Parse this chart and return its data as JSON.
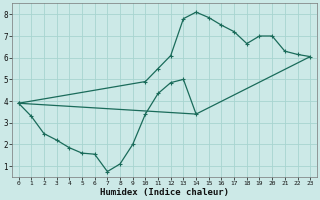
{
  "xlabel": "Humidex (Indice chaleur)",
  "bg_color": "#cce9e7",
  "grid_color": "#a8d4d0",
  "line_color": "#1a6b5a",
  "xlim": [
    -0.5,
    23.5
  ],
  "ylim": [
    0.5,
    8.5
  ],
  "xticks": [
    0,
    1,
    2,
    3,
    4,
    5,
    6,
    7,
    8,
    9,
    10,
    11,
    12,
    13,
    14,
    15,
    16,
    17,
    18,
    19,
    20,
    21,
    22,
    23
  ],
  "yticks": [
    1,
    2,
    3,
    4,
    5,
    6,
    7,
    8
  ],
  "curve1_x": [
    0,
    1,
    2,
    3,
    4,
    5,
    6,
    7,
    8,
    9,
    10,
    11,
    12,
    13,
    14
  ],
  "curve1_y": [
    3.9,
    3.3,
    2.5,
    2.2,
    1.85,
    1.6,
    1.55,
    0.75,
    1.1,
    2.0,
    3.4,
    4.35,
    4.85,
    5.0,
    3.4
  ],
  "curve2_x": [
    0,
    10,
    11,
    12,
    13,
    14,
    15,
    16,
    17,
    18,
    19,
    20,
    21,
    22,
    23
  ],
  "curve2_y": [
    3.9,
    4.9,
    5.5,
    6.1,
    7.8,
    8.1,
    7.85,
    7.5,
    7.2,
    6.65,
    7.0,
    7.0,
    6.3,
    6.15,
    6.05
  ],
  "line3_x": [
    0,
    14,
    23
  ],
  "line3_y": [
    3.9,
    3.4,
    6.05
  ]
}
